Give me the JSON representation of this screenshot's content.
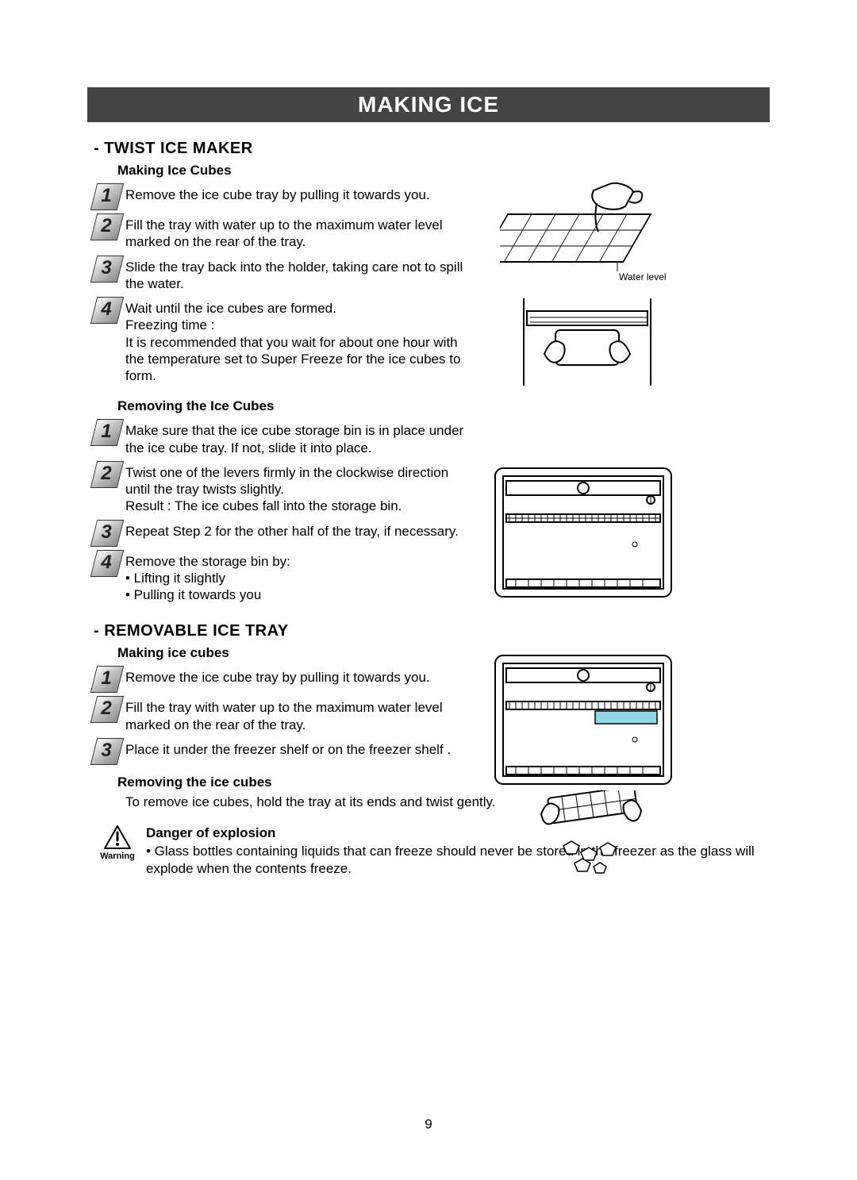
{
  "title": "MAKING ICE",
  "section1": {
    "heading": "- TWIST ICE MAKER",
    "sub_a": "Making Ice Cubes",
    "steps_a": [
      "Remove the ice cube tray by pulling it towards you.",
      "Fill the tray with water up to the maximum water level marked on the rear of the tray.",
      "Slide the tray back into the holder, taking care not to spill the water.",
      "Wait until the ice cubes are formed.\nFreezing time :\nIt is recommended that you wait for about one hour with the temperature set to Super Freeze for the ice cubes to form."
    ],
    "sub_b": "Removing the Ice Cubes",
    "steps_b": [
      "Make sure that the ice cube storage bin is in place under the ice cube tray. If not, slide it into place.",
      "Twist one of the levers firmly in the clockwise direction until the tray twists slightly.\nResult : The ice cubes fall into the storage bin.",
      "Repeat Step 2 for the other half of the tray, if necessary.",
      "Remove the storage bin by:\n• Lifting it slightly\n• Pulling it towards you"
    ]
  },
  "section2": {
    "heading": "- REMOVABLE ICE TRAY",
    "sub_a": "Making ice cubes",
    "steps_a": [
      "Remove the ice cube tray by pulling it towards you.",
      "Fill the tray with water up to the maximum water level marked on the rear of the tray.",
      "Place it under the freezer shelf or on the freezer shelf ."
    ],
    "sub_b": "Removing the ice cubes",
    "line_b": "To remove ice cubes, hold the tray at its ends and twist gently."
  },
  "warning": {
    "label": "Warning",
    "title": "Danger of explosion",
    "body": "• Glass bottles containing liquids that can freeze should never be stored in the freezer as the glass will explode when the contents freeze."
  },
  "fig_labels": {
    "water_level": "Water level"
  },
  "page_number": "9",
  "style": {
    "title_bg": "#444444",
    "title_fg": "#ffffff",
    "text_color": "#000000",
    "highlight": "#8fd9e6",
    "font_family": "Arial, Helvetica, sans-serif",
    "title_fontsize_pt": 21,
    "section_fontsize_pt": 15,
    "sub_fontsize_pt": 13,
    "body_fontsize_pt": 13,
    "step_box_gradient": [
      "#ffffff",
      "#bfbfbf",
      "#8a8a8a"
    ]
  }
}
